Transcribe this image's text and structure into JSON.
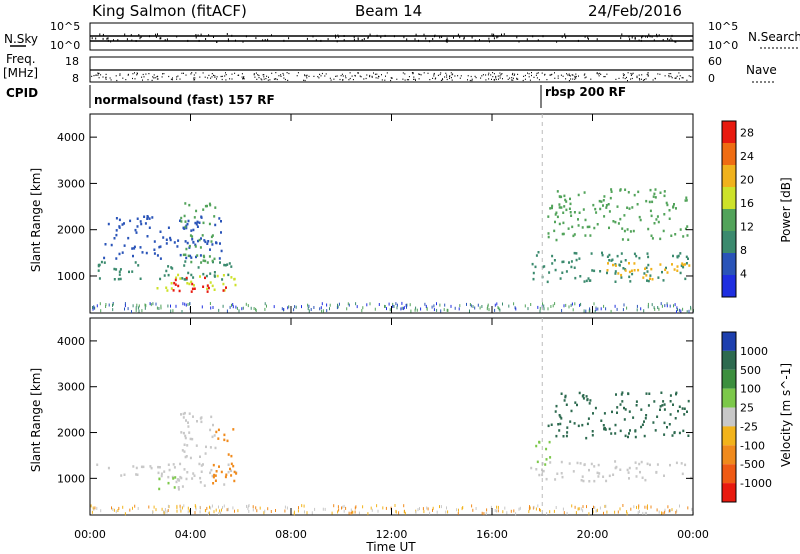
{
  "header": {
    "station": "King Salmon (fitACF)",
    "beam": "Beam 14",
    "date": "24/Feb/2016"
  },
  "left_labels": {
    "nsky": "N.Sky",
    "freq": "Freq.",
    "freq_unit": "[MHz]",
    "cpid": "CPID",
    "nsky_ticks": [
      "10^5",
      "10^0"
    ],
    "freq_ticks": [
      "18",
      "8"
    ]
  },
  "right_labels": {
    "nsearch": "N.Search",
    "nave": "Nave",
    "nsearch_ticks": [
      "10^5",
      "10^0"
    ],
    "nave_ticks": [
      "60",
      "0"
    ]
  },
  "cpid_segments": [
    {
      "label": "normalsound (fast) 157 RF",
      "start_hour": 0
    },
    {
      "label": "rbsp 200 RF",
      "start_hour": 18
    }
  ],
  "chart_data": [
    {
      "type": "heatmap",
      "name": "power",
      "ylabel": "Slant Range [km]",
      "xlabel": "Time UT",
      "x_ticks": [
        "00:00",
        "04:00",
        "08:00",
        "12:00",
        "16:00",
        "20:00",
        "00:00"
      ],
      "xlim": [
        0,
        24
      ],
      "ylim": [
        200,
        4500
      ],
      "y_ticks": [
        1000,
        2000,
        3000,
        4000
      ],
      "colorbar_label": "Power [dB]",
      "colorbar_ticks": [
        4,
        8,
        12,
        16,
        20,
        24,
        28
      ],
      "colorbar_range": [
        0,
        30
      ],
      "blobs": [
        {
          "t0": 0.1,
          "t1": 5.9,
          "r0": 950,
          "r1": 1350,
          "v": 8
        },
        {
          "t0": 2.6,
          "t1": 5.8,
          "r0": 700,
          "r1": 1050,
          "v": 18
        },
        {
          "t0": 3.1,
          "t1": 5.4,
          "r0": 650,
          "r1": 1000,
          "v": 28
        },
        {
          "t0": 0.5,
          "t1": 5.2,
          "r0": 1400,
          "r1": 2400,
          "v": 6
        },
        {
          "t0": 3.5,
          "t1": 5.0,
          "r0": 1300,
          "r1": 2600,
          "v": 12
        },
        {
          "t0": 17.5,
          "t1": 23.9,
          "r0": 900,
          "r1": 1550,
          "v": 10
        },
        {
          "t0": 20.5,
          "t1": 23.9,
          "r0": 950,
          "r1": 1350,
          "v": 21
        },
        {
          "t0": 18.2,
          "t1": 23.8,
          "r0": 1800,
          "r1": 2900,
          "v": 13
        }
      ],
      "ground_scatter_band": {
        "t0": 0,
        "t1": 24,
        "r0": 250,
        "r1": 400
      }
    },
    {
      "type": "heatmap",
      "name": "velocity",
      "ylabel": "Slant Range [km]",
      "xlabel": "Time UT",
      "x_ticks": [
        "00:00",
        "04:00",
        "08:00",
        "12:00",
        "16:00",
        "20:00",
        "00:00"
      ],
      "xlim": [
        0,
        24
      ],
      "ylim": [
        200,
        4500
      ],
      "y_ticks": [
        1000,
        2000,
        3000,
        4000
      ],
      "colorbar_label": "Velocity [m s^-1]",
      "colorbar_ticks": [
        "1000",
        "500",
        "100",
        "25",
        "-25",
        "-100",
        "-500",
        "-1000"
      ],
      "blobs": [
        {
          "t0": 0.1,
          "t1": 5.9,
          "r0": 1050,
          "r1": 1350,
          "v": "gray"
        },
        {
          "t0": 2.5,
          "t1": 3.4,
          "r0": 750,
          "r1": 1100,
          "v": "green"
        },
        {
          "t0": 3.4,
          "t1": 5.5,
          "r0": 750,
          "r1": 1050,
          "v": "gray"
        },
        {
          "t0": 4.8,
          "t1": 5.8,
          "r0": 900,
          "r1": 2100,
          "v": "orange"
        },
        {
          "t0": 3.5,
          "t1": 5.0,
          "r0": 1300,
          "r1": 2500,
          "v": "gray"
        },
        {
          "t0": 17.5,
          "t1": 23.9,
          "r0": 950,
          "r1": 1400,
          "v": "gray"
        },
        {
          "t0": 17.6,
          "t1": 18.3,
          "r0": 1300,
          "r1": 1900,
          "v": "green"
        },
        {
          "t0": 18.2,
          "t1": 23.8,
          "r0": 1900,
          "r1": 2900,
          "v": "darkgreen"
        }
      ]
    }
  ],
  "colors": {
    "power_scale": [
      "#1f2fe0",
      "#2a54b8",
      "#3b8a6e",
      "#52a35a",
      "#cde22a",
      "#f0b21c",
      "#ef6c12",
      "#e81a0f"
    ],
    "velocity_scale": [
      "#1d3fae",
      "#2d6a4f",
      "#3c8f3e",
      "#7cc84a",
      "#c8c8c8",
      "#f2b31b",
      "#f08a1c",
      "#ef5a14",
      "#e81a0f"
    ]
  }
}
